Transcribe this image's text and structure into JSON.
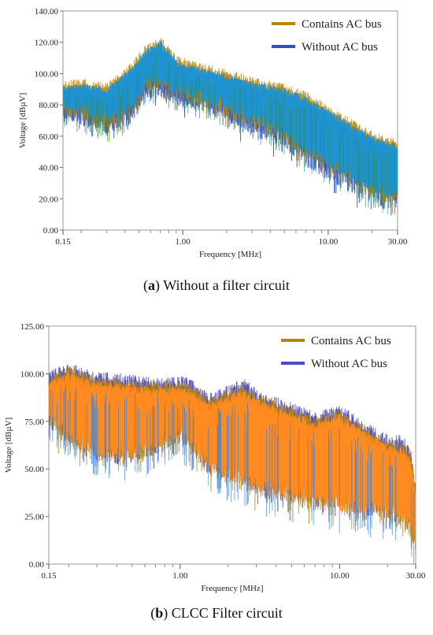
{
  "chart_data": [
    {
      "type": "line",
      "panel_label": "a",
      "caption_text": "Without a filter circuit",
      "xlabel": "Frequency [MHz]",
      "ylabel": "Voltage [dBµV]",
      "xscale": "log",
      "xlim": [
        0.15,
        30.0
      ],
      "ylim": [
        0.0,
        140.0
      ],
      "yticks": [
        "0.00",
        "20.00",
        "40.00",
        "60.00",
        "80.00",
        "100.00",
        "120.00",
        "140.00"
      ],
      "xticks": [
        {
          "value": 0.15,
          "label": "0.15"
        },
        {
          "value": 1.0,
          "label": "1.00"
        },
        {
          "value": 10.0,
          "label": "10.00"
        },
        {
          "value": 30.0,
          "label": "30.00"
        }
      ],
      "legend_position": "top-right",
      "series": [
        {
          "name": "Contains AC bus",
          "color": "#b8860b",
          "x": [
            0.15,
            0.2,
            0.3,
            0.45,
            0.55,
            0.7,
            0.9,
            1.2,
            2.0,
            3.0,
            5.0,
            7.0,
            10.0,
            15.0,
            20.0,
            25.0,
            30.0
          ],
          "upper": [
            95,
            97,
            94,
            108,
            118,
            124,
            112,
            108,
            103,
            98,
            94,
            89,
            80,
            70,
            64,
            60,
            58
          ],
          "lower": [
            73,
            70,
            64,
            72,
            88,
            88,
            83,
            80,
            72,
            64,
            56,
            44,
            36,
            26,
            20,
            16,
            18
          ]
        },
        {
          "name": "Without AC bus",
          "color": "#3050c8",
          "x": [
            0.15,
            0.2,
            0.3,
            0.45,
            0.55,
            0.7,
            0.9,
            1.2,
            2.0,
            3.0,
            5.0,
            7.0,
            10.0,
            15.0,
            20.0,
            25.0,
            30.0
          ],
          "upper": [
            92,
            93,
            88,
            102,
            110,
            114,
            108,
            104,
            99,
            95,
            90,
            85,
            76,
            66,
            60,
            57,
            55
          ],
          "lower": [
            70,
            67,
            60,
            68,
            84,
            85,
            80,
            77,
            69,
            60,
            52,
            40,
            32,
            22,
            16,
            12,
            15
          ]
        }
      ],
      "fill_color": "#1f93d0",
      "noise_color": "#2a8c6a"
    },
    {
      "type": "line",
      "panel_label": "b",
      "caption_text": "CLCC Filter circuit",
      "xlabel": "Frequency [MHz]",
      "ylabel": "Voltage [dBµV]",
      "xscale": "log",
      "xlim": [
        0.15,
        30.0
      ],
      "ylim": [
        0.0,
        125.0
      ],
      "yticks": [
        "0.00",
        "25.00",
        "50.00",
        "75.00",
        "100.00",
        "125.00"
      ],
      "xticks": [
        {
          "value": 0.15,
          "label": "0.15"
        },
        {
          "value": 1.0,
          "label": "1.00"
        },
        {
          "value": 10.0,
          "label": "10.00"
        },
        {
          "value": 30.0,
          "label": "30.00"
        }
      ],
      "legend_position": "top-right",
      "series": [
        {
          "name": "Contains AC bus",
          "color": "#b8860b",
          "x": [
            0.15,
            0.2,
            0.3,
            0.45,
            0.7,
            1.0,
            1.2,
            1.5,
            2.0,
            2.5,
            3.0,
            5.0,
            7.0,
            10.0,
            15.0,
            20.0,
            25.0,
            28.0,
            30.0
          ],
          "upper": [
            100,
            104,
            99,
            98,
            96,
            97,
            95,
            88,
            92,
            95,
            90,
            83,
            78,
            82,
            72,
            66,
            65,
            58,
            42
          ],
          "lower": [
            70,
            60,
            52,
            50,
            55,
            62,
            55,
            45,
            40,
            38,
            34,
            30,
            28,
            24,
            22,
            20,
            18,
            12,
            2
          ]
        },
        {
          "name": "Without AC bus",
          "color": "#4b4bc8",
          "x": [
            0.15,
            0.2,
            0.3,
            0.45,
            0.7,
            1.0,
            1.2,
            1.5,
            2.0,
            2.5,
            3.0,
            5.0,
            7.0,
            10.0,
            15.0,
            20.0,
            25.0,
            28.0,
            30.0
          ],
          "upper": [
            102,
            106,
            101,
            100,
            98,
            99,
            97,
            90,
            94,
            98,
            92,
            85,
            80,
            84,
            74,
            68,
            68,
            60,
            44
          ],
          "lower": [
            72,
            62,
            54,
            52,
            57,
            64,
            57,
            47,
            42,
            40,
            36,
            32,
            30,
            26,
            24,
            22,
            20,
            14,
            4
          ]
        }
      ],
      "fill_color": "#ff8a1f",
      "noise_color": "#3a7fd0"
    }
  ]
}
